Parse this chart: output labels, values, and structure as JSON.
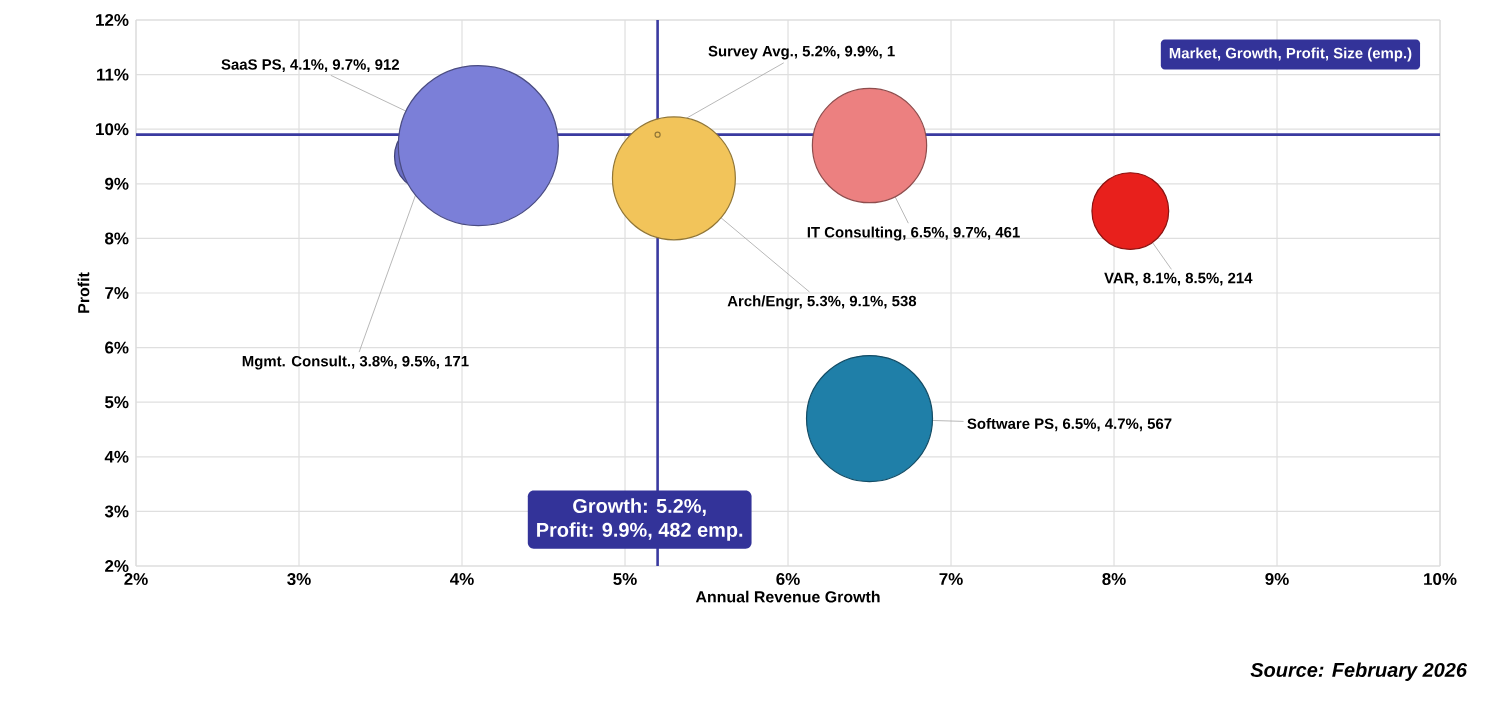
{
  "chart_data": {
    "type": "bubble",
    "xlabel": "Annual Revenue Growth",
    "ylabel": "Profit",
    "x": [
      4.1,
      5.2,
      3.8,
      5.3,
      6.5,
      8.1,
      6.5
    ],
    "values": [
      9.7,
      9.9,
      9.5,
      9.1,
      9.7,
      8.5,
      4.7
    ],
    "sizes": [
      1,
      0.001,
      0.19,
      0.59,
      0.51,
      0.23,
      0.62
    ],
    "colors": [
      "#7b7fd8",
      "#f2c45a",
      "#6a6ec4",
      "#f2c45a",
      "#ec8080",
      "#e8201c",
      "#1f7fa8"
    ],
    "value_labels": [
      "SaaS PS, 4.1%, 9.7%, 912",
      "Survey Avg., 5.2%, 9.9%, 1",
      "Mgmt. Consult., 3.8%, 9.5%, 171",
      "Arch/Engr, 5.3%, 9.1%, 538",
      "IT Consulting, 6.5%, 9.7%, 461",
      "VAR, 8.1%, 8.5%, 214",
      "Software PS, 6.5%, 4.7%, 567"
    ],
    "xlim": [
      2,
      10
    ],
    "ylim": [
      2,
      12
    ],
    "xticks": [
      {
        "value": 2,
        "label": "2%"
      },
      {
        "value": 3,
        "label": "3%"
      },
      {
        "value": 4,
        "label": "4%"
      },
      {
        "value": 5,
        "label": "5%"
      },
      {
        "value": 6,
        "label": "6%"
      },
      {
        "value": 7,
        "label": "7%"
      },
      {
        "value": 8,
        "label": "8%"
      },
      {
        "value": 9,
        "label": "9%"
      },
      {
        "value": 10,
        "label": "10%"
      }
    ],
    "yticks": [
      {
        "value": 2,
        "label": "2%"
      },
      {
        "value": 3,
        "label": "3%"
      },
      {
        "value": 4,
        "label": "4%"
      },
      {
        "value": 5,
        "label": "5%"
      },
      {
        "value": 6,
        "label": "6%"
      },
      {
        "value": 7,
        "label": "7%"
      },
      {
        "value": 8,
        "label": "8%"
      },
      {
        "value": 9,
        "label": "9%"
      },
      {
        "value": 10,
        "label": "10%"
      },
      {
        "value": 11,
        "label": "11%"
      },
      {
        "value": 12,
        "label": "12%"
      }
    ],
    "grid": true,
    "ref_lines": [
      {
        "axis": "x",
        "value": 5.2,
        "color": "#3a3aa0"
      },
      {
        "axis": "y",
        "value": 9.9,
        "color": "#3a3aa0"
      }
    ],
    "annotations": [
      "Market, Growth, Profit, Size (emp.)",
      "Growth: 5.2%,",
      "Profit: 9.9%, 482 emp.",
      "Source: February 2026"
    ]
  }
}
